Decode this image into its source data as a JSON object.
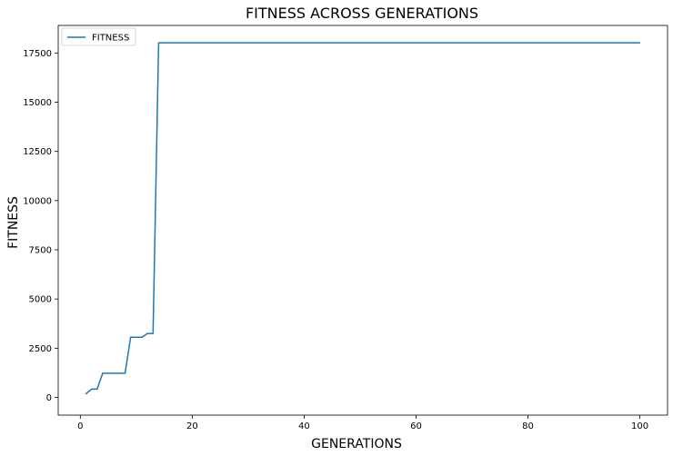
{
  "chart_data": {
    "type": "line",
    "title": "FITNESS ACROSS GENERATIONS",
    "xlabel": "GENERATIONS",
    "ylabel": "FITNESS",
    "xlim": [
      -3.95,
      104.95
    ],
    "ylim": [
      -900,
      18900
    ],
    "xticks": [
      0,
      20,
      40,
      60,
      80,
      100
    ],
    "yticks": [
      0,
      2500,
      5000,
      7500,
      10000,
      12500,
      15000,
      17500
    ],
    "grid": false,
    "legend_position": "top-left",
    "series": [
      {
        "name": "FITNESS",
        "color": "#1f77b4",
        "x": [
          1,
          2,
          3,
          4,
          5,
          6,
          7,
          8,
          9,
          10,
          11,
          12,
          13,
          14,
          100
        ],
        "y": [
          180,
          420,
          420,
          1230,
          1230,
          1230,
          1230,
          1230,
          3060,
          3060,
          3060,
          3250,
          3250,
          18020,
          18020
        ]
      }
    ]
  }
}
